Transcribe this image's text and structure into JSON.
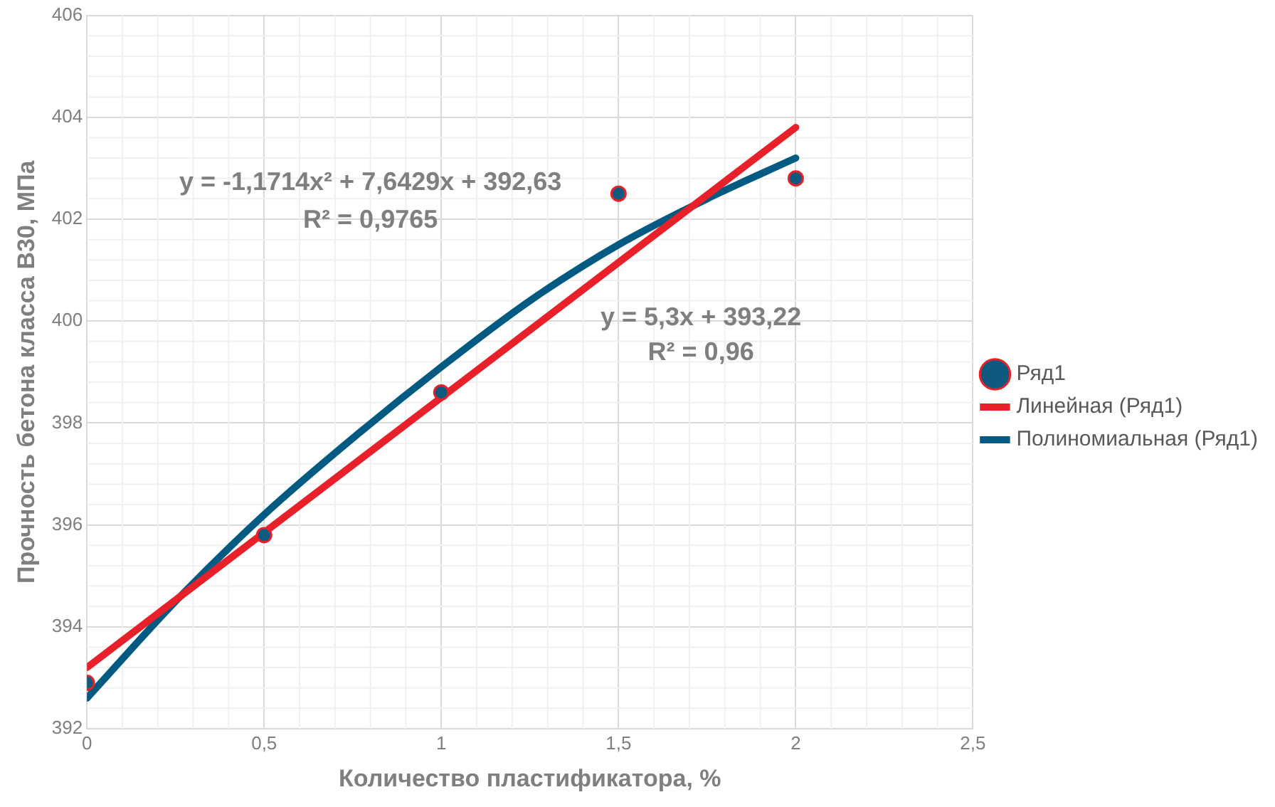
{
  "chart_data": {
    "type": "scatter",
    "xlabel": "Количество пластификатора, %",
    "ylabel": "Прочность бетона класса В30, МПа",
    "xlim": [
      0,
      2.5
    ],
    "xticks": [
      {
        "value": 0,
        "label": "0"
      },
      {
        "value": 0.5,
        "label": "0,5"
      },
      {
        "value": 1,
        "label": "1"
      },
      {
        "value": 1.5,
        "label": "1,5"
      },
      {
        "value": 2,
        "label": "2"
      },
      {
        "value": 2.5,
        "label": "2,5"
      }
    ],
    "ylim": [
      392,
      406
    ],
    "yticks": [
      392,
      394,
      396,
      398,
      400,
      402,
      404,
      406
    ],
    "grid": true,
    "legend": "right",
    "marker": "circle",
    "series": [
      {
        "name": "Ряд1",
        "color": "#0e5a7e",
        "x": [
          0,
          0.5,
          1,
          1.5,
          2
        ],
        "values": [
          392.9,
          395.8,
          398.6,
          402.5,
          402.8
        ]
      },
      {
        "name": "Линейная (Ряд1)",
        "type": "line",
        "marker": "none",
        "color": "#e8202a",
        "x": [
          0,
          2
        ],
        "values": [
          393.2,
          403.8
        ]
      },
      {
        "name": "Полиномиальная (Ряд1)",
        "type": "line",
        "marker": "none",
        "color": "#005a82",
        "x": [
          0,
          0.25,
          0.5,
          0.75,
          1,
          1.25,
          1.5,
          1.75,
          2
        ],
        "values": [
          392.6,
          394.5,
          396.2,
          397.7,
          399.1,
          400.4,
          401.5,
          402.4,
          403.2
        ]
      }
    ],
    "annotations": [
      "y = -1,1714x² + 7,6429x + 392,63",
      "R² = 0,9765",
      "y = 5,3x + 393,22",
      "R² = 0,96"
    ]
  }
}
